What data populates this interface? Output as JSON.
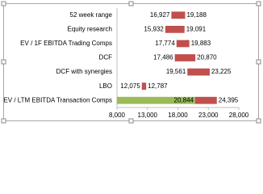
{
  "chart_data": {
    "type": "floating-bar",
    "orientation": "horizontal",
    "categories": [
      "52 week range",
      "Equity research",
      "EV / 1F EBITDA Trading Comps",
      "DCF",
      "DCF with synergies",
      "LBO",
      "EV / LTM EBITDA Transaction Comps"
    ],
    "series": [
      {
        "values": [
          16927,
          15932,
          17774,
          17486,
          19561,
          12075,
          20844
        ],
        "value_labels": [
          "16,927",
          "15,932",
          "17,774",
          "17,486",
          "19,561",
          "12,075",
          "20,844"
        ],
        "colors": [
          null,
          null,
          null,
          null,
          null,
          null,
          "#9bbb59"
        ]
      },
      {
        "values": [
          19188,
          19091,
          19883,
          20870,
          23225,
          12787,
          24395
        ],
        "value_labels": [
          "19,188",
          "19,091",
          "19,883",
          "20,870",
          "23,225",
          "12,787",
          "24,395"
        ],
        "color": "#c0504d"
      }
    ],
    "xlim": [
      8000,
      28000
    ],
    "xticks": [
      {
        "value": 8000,
        "label": "8,000"
      },
      {
        "value": 13000,
        "label": "13,000"
      },
      {
        "value": 18000,
        "label": "18,000"
      },
      {
        "value": 23000,
        "label": "23,000"
      },
      {
        "value": 28000,
        "label": "28,000"
      }
    ],
    "grid": false
  }
}
